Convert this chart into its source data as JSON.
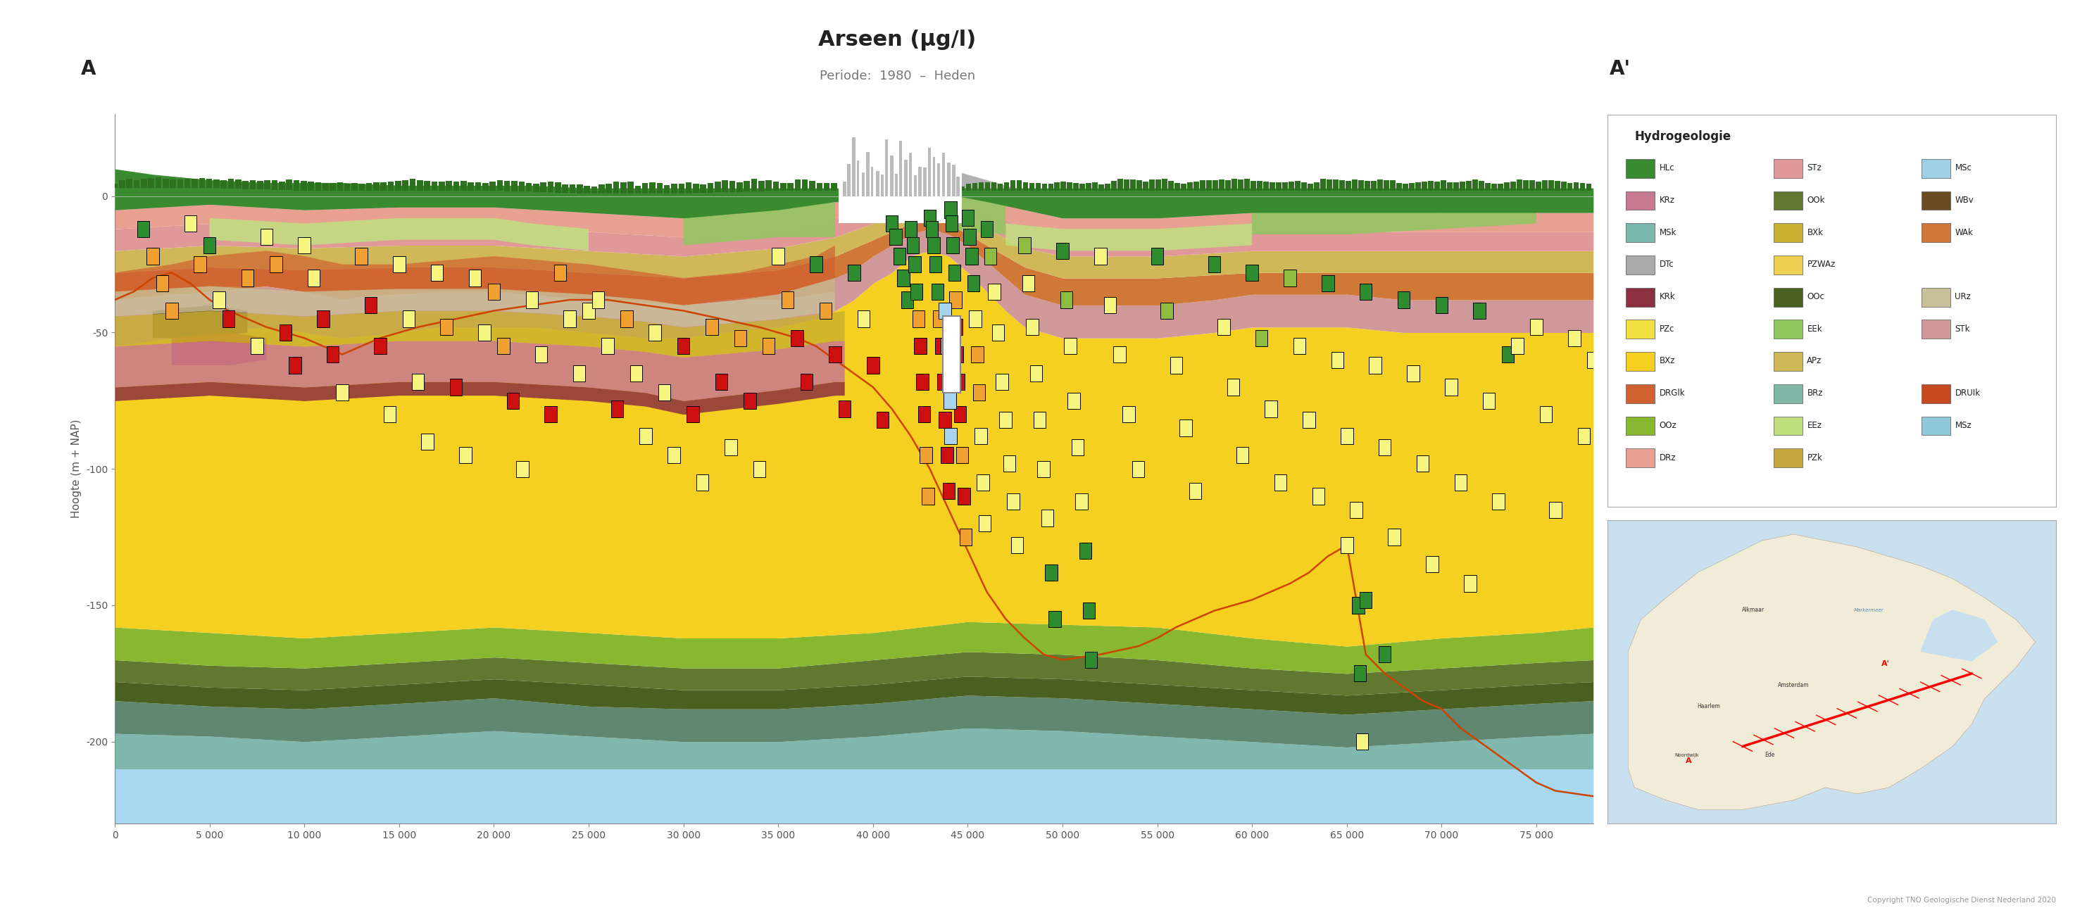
{
  "title": "Arseen (μg/l)",
  "subtitle": "Periode:  1980  –  Heden",
  "ylabel": "Hoogte (m + NAP)",
  "xlim": [
    0,
    78000
  ],
  "ylim": [
    -230,
    30
  ],
  "xticks": [
    0,
    5000,
    10000,
    15000,
    20000,
    25000,
    30000,
    35000,
    40000,
    45000,
    50000,
    55000,
    60000,
    65000,
    70000,
    75000
  ],
  "xtick_labels": [
    "0",
    "5 000",
    "10 000",
    "15 000",
    "20 000",
    "25 000",
    "30 000",
    "35 000",
    "40 000",
    "45 000",
    "50 000",
    "55 000",
    "60 000",
    "65 000",
    "70 000",
    "75 000"
  ],
  "yticks": [
    0,
    -50,
    -100,
    -150,
    -200
  ],
  "label_A": "A",
  "label_Aprime": "A'",
  "background_color": "#ffffff",
  "legend_title": "Hydrogeologie",
  "geo_legend": [
    [
      "HLc",
      "#3a8a30",
      "KRz",
      "#c87890",
      "MSk",
      "#7ab8b0"
    ],
    [
      "DTc",
      "#aaaaaa",
      "KRk",
      "#8b3040",
      "PZc",
      "#f0e040"
    ],
    [
      "BXz",
      "#f5d020",
      "DRGlk",
      "#d06030",
      "OOz",
      "#88b830"
    ],
    [
      "DRz",
      "#e8a090",
      "STz",
      "#e09898",
      "OOk",
      "#607830"
    ],
    [
      "BXk",
      "#c8b030",
      "PZWAz",
      "#f0d050",
      "OOc",
      "#4a6020"
    ],
    [
      "EEk",
      "#90c860",
      "APz",
      "#d0b858",
      "BRz",
      "#80b8a8"
    ],
    [
      "EEz",
      "#c0e080",
      "PZk",
      "#c8a840",
      "MSc",
      "#a0d0e8"
    ],
    [
      "WBv",
      "#6b4c20",
      "WAk",
      "#d07838"
    ],
    [
      "URz",
      "#c8c098",
      "STk",
      "#d09898"
    ],
    [
      "DRUIk",
      "#c84820",
      "MSz",
      "#90c8d8"
    ]
  ],
  "arseen_colors": [
    "#2e8b2e",
    "#8fbc40",
    "#f5f580",
    "#f0a030",
    "#cc1010",
    "#a8d4f0"
  ],
  "arseen_edge": "#000000",
  "title_fontsize": 22,
  "subtitle_fontsize": 13,
  "axis_fontsize": 11,
  "tick_fontsize": 10,
  "copyright_text": "Copyright TNO Geologische Dienst Nederland 2020"
}
